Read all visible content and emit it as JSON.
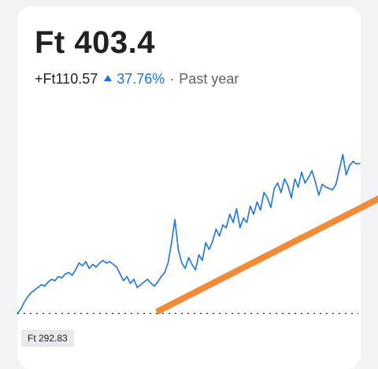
{
  "quote": {
    "price": "Ft 403.4",
    "abs_change": "+Ft110.57",
    "pct_change": "37.76%",
    "separator": "·",
    "period": "Past year",
    "previous_close_label": "Ft 292.83"
  },
  "colors": {
    "line": "#1a73e8",
    "trendline": "#f28b38",
    "up": "#1a73e8",
    "baseline_dots": "#202124"
  },
  "chart_data": {
    "type": "line",
    "title": "",
    "xlabel": "",
    "ylabel": "",
    "baseline": 292.83,
    "ylim": [
      285,
      410
    ],
    "x": [
      0,
      1,
      2,
      3,
      4,
      5,
      6,
      7,
      8,
      9,
      10,
      11,
      12,
      13,
      14,
      15,
      16,
      17,
      18,
      19,
      20,
      21,
      22,
      23,
      24,
      25,
      26,
      27,
      28,
      29,
      30,
      31,
      32,
      33,
      34,
      35,
      36,
      37,
      38,
      39,
      40,
      41,
      42,
      43,
      44,
      45,
      46,
      47,
      48,
      49,
      50,
      51,
      52,
      53,
      54,
      55,
      56,
      57,
      58,
      59,
      60,
      61,
      62,
      63,
      64,
      65,
      66,
      67,
      68,
      69,
      70,
      71,
      72,
      73,
      74,
      75,
      76,
      77,
      78,
      79,
      80,
      81,
      82,
      83,
      84,
      85,
      86,
      87,
      88,
      89,
      90,
      91,
      92,
      93,
      94,
      95,
      96,
      97,
      98,
      99,
      100
    ],
    "series": [
      {
        "values": [
          292.8,
          296,
          301,
          305,
          308,
          310,
          312,
          314,
          313,
          316,
          318,
          317,
          320,
          319,
          322,
          323,
          321,
          325,
          330,
          328,
          331,
          326,
          329,
          327,
          330,
          332,
          330,
          331,
          329,
          327,
          322,
          317,
          320,
          315,
          318,
          312,
          314,
          316,
          318,
          315,
          313,
          316,
          320,
          323,
          330,
          345,
          362,
          340,
          330,
          326,
          334,
          329,
          325,
          336,
          332,
          345,
          340,
          346,
          355,
          350,
          358,
          356,
          366,
          360,
          370,
          356,
          363,
          360,
          372,
          366,
          375,
          369,
          382,
          378,
          371,
          385,
          389,
          382,
          392,
          387,
          378,
          392,
          386,
          397,
          389,
          393,
          398,
          390,
          380,
          388,
          386,
          385,
          384,
          388,
          399,
          410,
          395,
          402,
          405,
          403,
          403.4
        ]
      }
    ],
    "trendline": {
      "x": [
        40,
        100
      ],
      "values": [
        294,
        372
      ]
    }
  }
}
